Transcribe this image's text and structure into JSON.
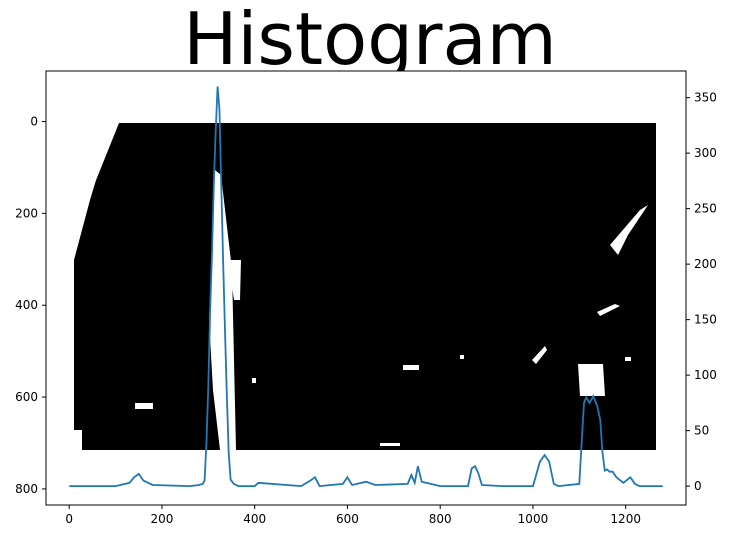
{
  "chart_data": {
    "type": "line",
    "title": "Histogram",
    "xlabel": "",
    "ylabel": "",
    "grid": false,
    "series_color": "#1f77b4",
    "image_ticks": {
      "x": [
        0,
        200,
        400,
        600,
        800,
        1000,
        1200
      ],
      "y_left": [
        0,
        200,
        400,
        600,
        800
      ]
    },
    "xlim": [
      -50,
      1330
    ],
    "ylim_left": [
      835,
      -110
    ],
    "ylim_right": [
      -17,
      374
    ],
    "y_right_ticks": [
      0,
      50,
      100,
      150,
      200,
      250,
      300,
      350
    ],
    "series": [
      {
        "x": [
          0,
          100,
          130,
          140,
          150,
          160,
          180,
          260,
          280,
          288,
          292,
          296,
          300,
          304,
          308,
          312,
          316,
          320,
          324,
          328,
          332,
          336,
          340,
          344,
          348,
          355,
          365,
          400,
          408,
          500,
          520,
          530,
          540,
          590,
          600,
          610,
          640,
          660,
          730,
          738,
          745,
          752,
          760,
          800,
          860,
          868,
          875,
          882,
          890,
          935,
          1000,
          1015,
          1025,
          1035,
          1045,
          1055,
          1100,
          1105,
          1110,
          1115,
          1122,
          1130,
          1138,
          1145,
          1150,
          1155,
          1160,
          1165,
          1172,
          1180,
          1195,
          1210,
          1220,
          1230,
          1280
        ],
        "y": [
          0,
          0,
          3,
          8,
          11,
          5,
          1,
          0,
          1,
          2,
          5,
          40,
          90,
          160,
          210,
          275,
          320,
          360,
          340,
          270,
          200,
          140,
          80,
          30,
          6,
          2,
          0,
          0,
          3,
          0,
          5,
          8,
          0,
          2,
          8,
          1,
          4,
          1,
          2,
          10,
          3,
          18,
          4,
          0,
          0,
          16,
          18,
          12,
          1,
          0,
          0,
          22,
          28,
          22,
          2,
          0,
          2,
          40,
          75,
          80,
          75,
          81,
          73,
          60,
          30,
          14,
          15,
          13,
          13,
          8,
          3,
          8,
          2,
          0,
          0
        ]
      }
    ]
  }
}
